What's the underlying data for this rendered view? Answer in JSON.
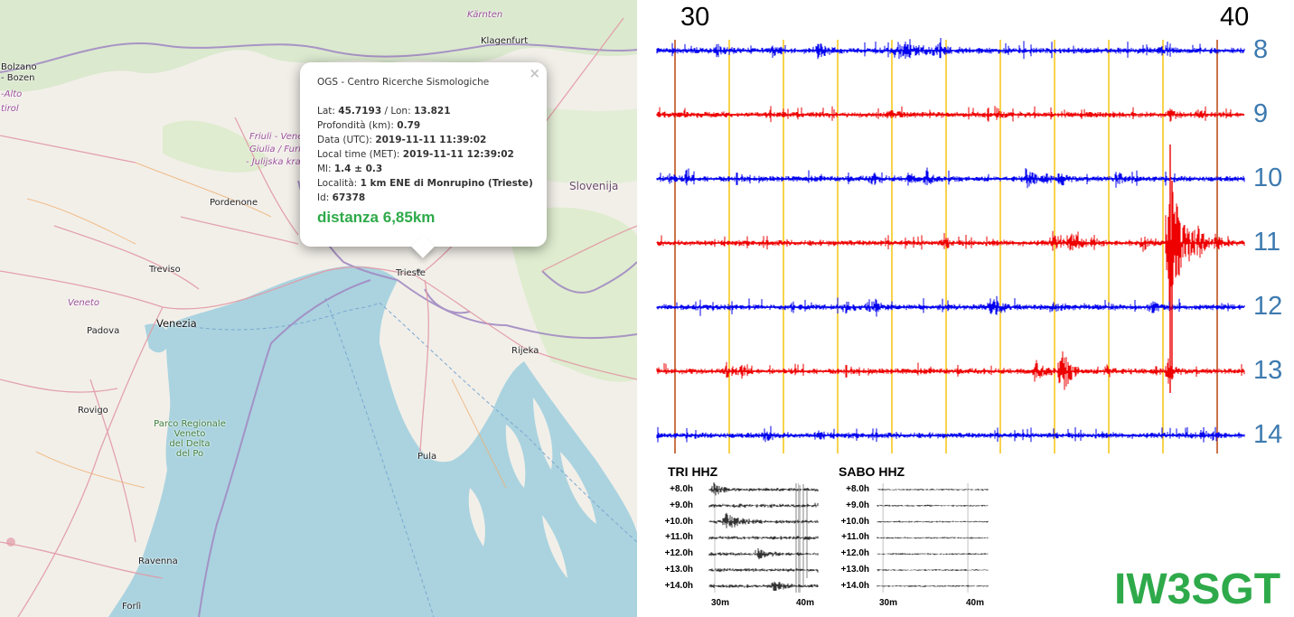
{
  "map": {
    "labels": {
      "karnten": "Kärnten",
      "klagenfurt": "Klagenfurt",
      "bolzano": "Bolzano",
      "bozen": "- Bozen",
      "alto": "-Alto",
      "tirol": "tirol",
      "friuli1": "Friuli - Vene",
      "friuli2": "Giulia / Furla",
      "friuli3": "- Julijska kra",
      "pordenone": "Pordenone",
      "slovenija": "Slovenija",
      "treviso": "Treviso",
      "trieste": "Trieste",
      "veneto": "Veneto",
      "venezia": "Venezia",
      "padova": "Padova",
      "rijeka": "Rijeka",
      "rovigo": "Rovigo",
      "park1": "Parco Regionale",
      "park2": "Veneto",
      "park3": "del Delta",
      "park4": "del Po",
      "pula": "Pula",
      "ravenna": "Ravenna",
      "forli": "Forlì"
    },
    "popup": {
      "agency": "OGS - Centro Ricerche Sismologiche",
      "lat_label": "Lat:",
      "lat": "45.7193",
      "lon_label": "/ Lon:",
      "lon": "13.821",
      "depth_label": "Profondità (km):",
      "depth": "0.79",
      "utc_label": "Data (UTC):",
      "utc": "2019-11-11 11:39:02",
      "met_label": "Local time (MET):",
      "met": "2019-11-11 12:39:02",
      "ml_label": "Ml:",
      "ml": "1.4 ± 0.3",
      "loc_label": "Località:",
      "loc": "1 km ENE di Monrupino (Trieste)",
      "id_label": "Id:",
      "id": "67378",
      "distance": "distanza 6,85km",
      "close": "×"
    }
  },
  "drum": {
    "minute_left": "30",
    "minute_right": "40",
    "hours": [
      "8",
      "9",
      "10",
      "11",
      "12",
      "13",
      "14"
    ],
    "trace_colors": [
      "#0000ee",
      "#ee0000"
    ]
  },
  "mini": {
    "left_title": "TRI HHZ",
    "right_title": "SABO HHZ",
    "rows": [
      "+8.0h",
      "+9.0h",
      "+10.0h",
      "+11.0h",
      "+12.0h",
      "+13.0h",
      "+14.0h"
    ],
    "ax_left": "30m",
    "ax_right": "40m"
  },
  "callsign": "IW3SGT",
  "colors": {
    "distance": "#2eaa4a",
    "hour_label": "#3d7ab0",
    "grid_minor": "#f5c000",
    "grid_major": "#c0501e"
  }
}
